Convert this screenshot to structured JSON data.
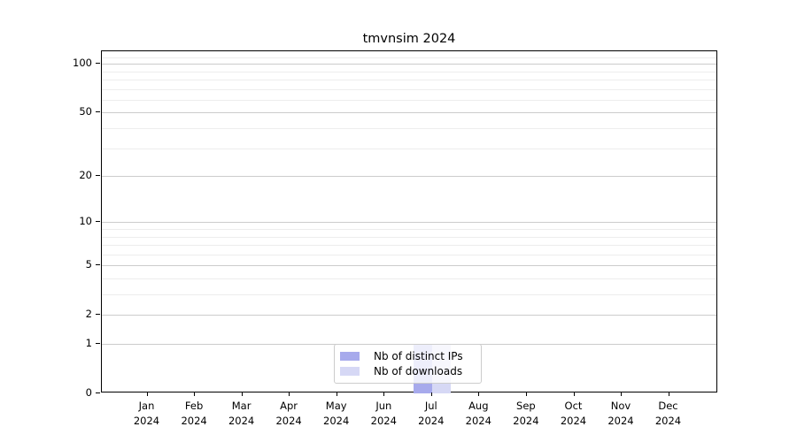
{
  "title": "tmvnsim 2024",
  "chart_data": {
    "type": "bar",
    "title": "tmvnsim 2024",
    "categories": [
      "Jan",
      "Feb",
      "Mar",
      "Apr",
      "May",
      "Jun",
      "Jul",
      "Aug",
      "Sep",
      "Oct",
      "Nov",
      "Dec"
    ],
    "category_year": "2024",
    "series": [
      {
        "name": "Nb of distinct IPs",
        "color": "#a7aaec",
        "values": [
          0,
          0,
          0,
          0,
          0,
          0,
          1,
          0,
          0,
          0,
          0,
          0
        ]
      },
      {
        "name": "Nb of downloads",
        "color": "#d6d8f5",
        "values": [
          0,
          0,
          0,
          0,
          0,
          0,
          1,
          0,
          0,
          0,
          0,
          0
        ]
      }
    ],
    "xlabel": "",
    "ylabel": "",
    "y_scale": "log10(1+v)",
    "ylim": [
      0,
      120
    ],
    "y_major_ticks": [
      0,
      1,
      2,
      5,
      10,
      20,
      50,
      100
    ],
    "y_minor_gridlines": [
      3,
      4,
      6,
      7,
      8,
      9,
      30,
      40,
      60,
      70,
      80,
      90,
      110
    ],
    "grid": "horizontal major and minor gridlines",
    "legend_position": "inside bottom-center",
    "colors": {
      "background": "#ffffff",
      "axis": "#000000",
      "major_grid": "#cccccc",
      "minor_grid": "#ededed",
      "text": "#000000"
    }
  },
  "legend": {
    "items": [
      {
        "label": "Nb of distinct IPs",
        "color": "#a7aaec"
      },
      {
        "label": "Nb of downloads",
        "color": "#d6d8f5"
      }
    ]
  }
}
